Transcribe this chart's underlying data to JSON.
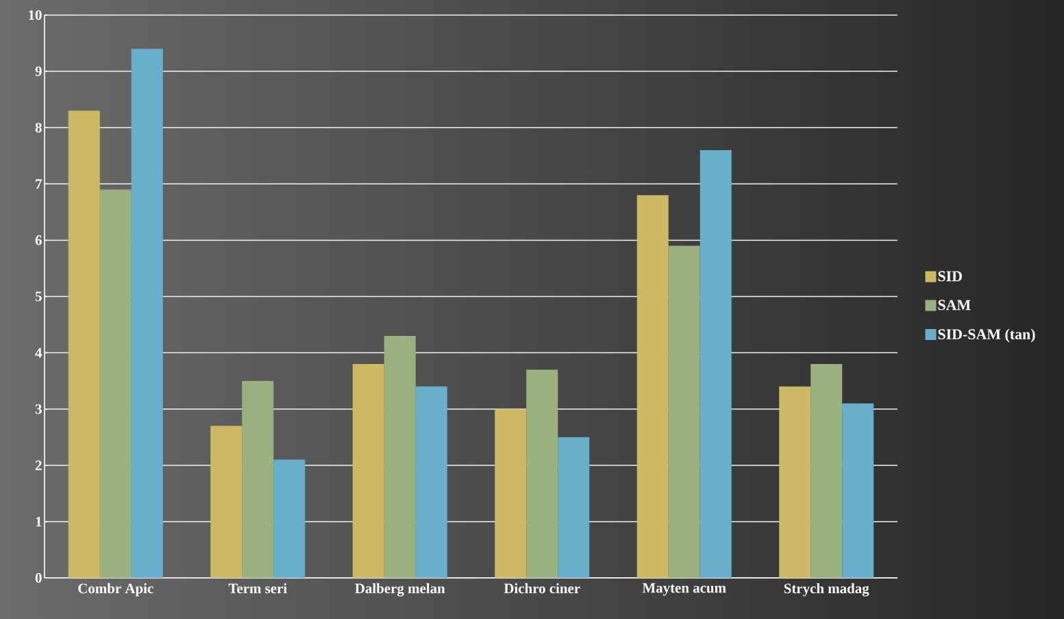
{
  "chart_data": {
    "type": "bar",
    "categories": [
      "Combr Apic",
      "Term seri",
      "Dalberg melan",
      "Dichro ciner",
      "Mayten acum",
      "Strych madag"
    ],
    "series": [
      {
        "name": "SID",
        "color": "#cdb964",
        "values": [
          8.3,
          2.7,
          3.8,
          3.0,
          6.8,
          3.4
        ]
      },
      {
        "name": "SAM",
        "color": "#9bb07f",
        "values": [
          6.9,
          3.5,
          4.3,
          3.7,
          5.9,
          3.8
        ]
      },
      {
        "name": "SID-SAM (tan)",
        "color": "#68afcb",
        "values": [
          9.4,
          2.1,
          3.4,
          2.5,
          7.6,
          3.1
        ]
      }
    ],
    "ylim": [
      0,
      10
    ],
    "yticks": [
      0,
      1,
      2,
      3,
      4,
      5,
      6,
      7,
      8,
      9,
      10
    ],
    "grid": "y",
    "legend": "right"
  }
}
